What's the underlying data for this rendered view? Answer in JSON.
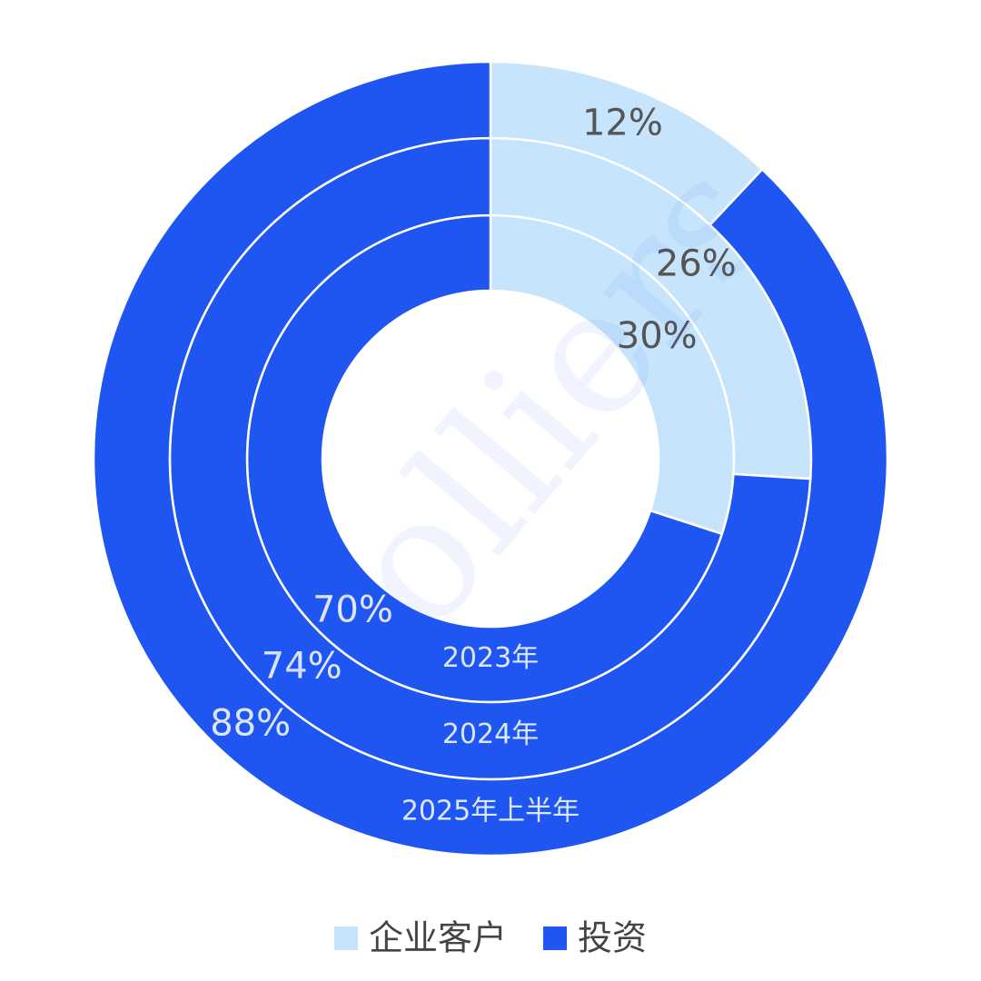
{
  "chart_data": {
    "type": "donut",
    "watermark": "Colliers",
    "categories": [
      "企业客户",
      "投资"
    ],
    "colors": [
      "#c6e4fb",
      "#1f56f2"
    ],
    "series": [
      {
        "name": "2023年",
        "values": [
          30,
          70
        ],
        "value_labels": [
          "30%",
          "70%"
        ]
      },
      {
        "name": "2024年",
        "values": [
          26,
          74
        ],
        "value_labels": [
          "26%",
          "74%"
        ]
      },
      {
        "name": "2025年上半年",
        "values": [
          12,
          88
        ],
        "value_labels": [
          "12%",
          "88%"
        ]
      }
    ],
    "legend": "bottom"
  }
}
